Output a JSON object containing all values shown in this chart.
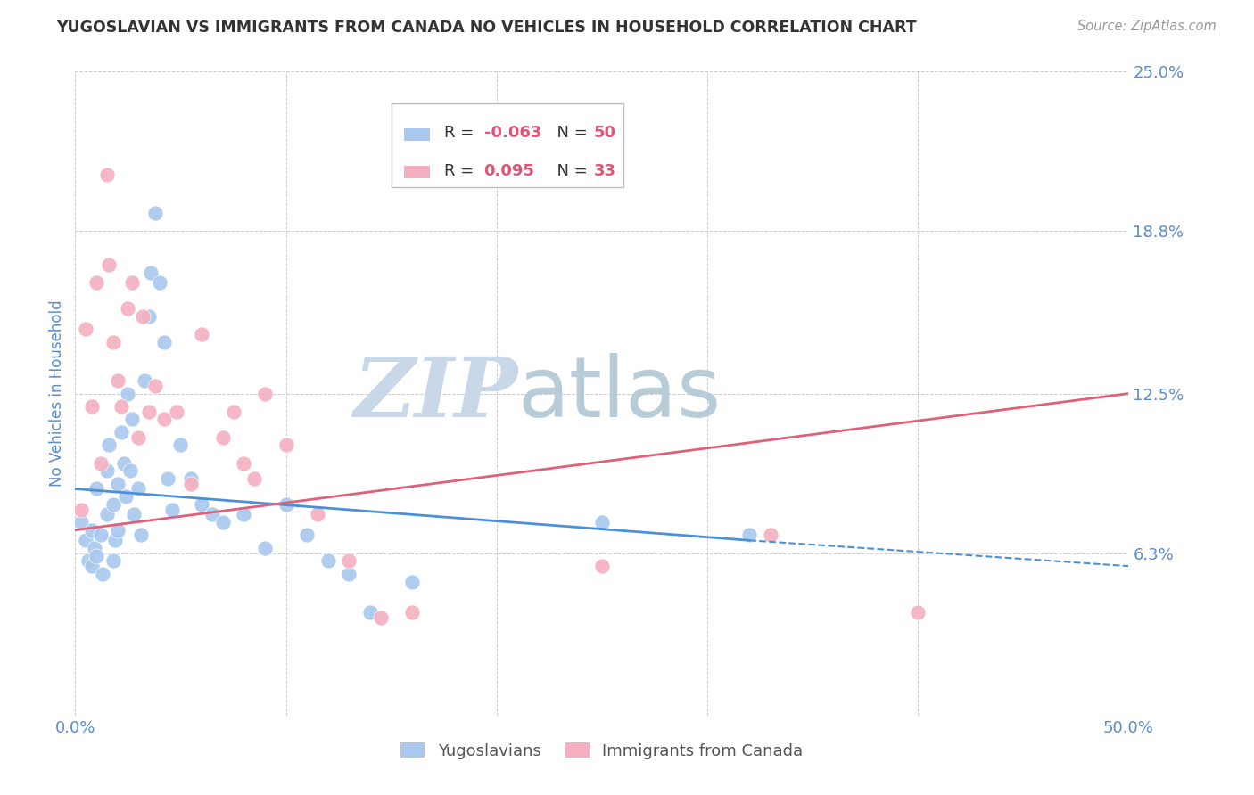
{
  "title": "YUGOSLAVIAN VS IMMIGRANTS FROM CANADA NO VEHICLES IN HOUSEHOLD CORRELATION CHART",
  "source": "Source: ZipAtlas.com",
  "ylabel": "No Vehicles in Household",
  "xlim": [
    0.0,
    0.5
  ],
  "ylim": [
    0.0,
    0.25
  ],
  "yticks": [
    0.0,
    0.063,
    0.125,
    0.188,
    0.25
  ],
  "ytick_labels": [
    "",
    "6.3%",
    "12.5%",
    "18.8%",
    "25.0%"
  ],
  "xtick_vals": [
    0.0,
    0.1,
    0.2,
    0.3,
    0.4,
    0.5
  ],
  "xtick_labels": [
    "0.0%",
    "",
    "",
    "",
    "",
    "50.0%"
  ],
  "watermark_zip": "ZIP",
  "watermark_atlas": "atlas",
  "series": [
    {
      "label": "Yugoslavians",
      "R": -0.063,
      "N": 50,
      "color": "#a8c8ee",
      "line_color": "#4a90d9",
      "line_solid_end": 0.32,
      "x": [
        0.003,
        0.005,
        0.006,
        0.008,
        0.008,
        0.009,
        0.01,
        0.01,
        0.012,
        0.013,
        0.015,
        0.015,
        0.016,
        0.018,
        0.018,
        0.019,
        0.02,
        0.02,
        0.022,
        0.023,
        0.024,
        0.025,
        0.026,
        0.027,
        0.028,
        0.03,
        0.031,
        0.033,
        0.035,
        0.036,
        0.038,
        0.04,
        0.042,
        0.044,
        0.046,
        0.05,
        0.055,
        0.06,
        0.065,
        0.07,
        0.08,
        0.09,
        0.1,
        0.11,
        0.12,
        0.13,
        0.14,
        0.16,
        0.25,
        0.32
      ],
      "y": [
        0.075,
        0.068,
        0.06,
        0.072,
        0.058,
        0.065,
        0.088,
        0.062,
        0.07,
        0.055,
        0.095,
        0.078,
        0.105,
        0.082,
        0.06,
        0.068,
        0.09,
        0.072,
        0.11,
        0.098,
        0.085,
        0.125,
        0.095,
        0.115,
        0.078,
        0.088,
        0.07,
        0.13,
        0.155,
        0.172,
        0.195,
        0.168,
        0.145,
        0.092,
        0.08,
        0.105,
        0.092,
        0.082,
        0.078,
        0.075,
        0.078,
        0.065,
        0.082,
        0.07,
        0.06,
        0.055,
        0.04,
        0.052,
        0.075,
        0.07
      ]
    },
    {
      "label": "Immigrants from Canada",
      "R": 0.095,
      "N": 33,
      "color": "#f4b0c0",
      "line_color": "#e0607a",
      "x": [
        0.003,
        0.005,
        0.008,
        0.01,
        0.012,
        0.015,
        0.016,
        0.018,
        0.02,
        0.022,
        0.025,
        0.027,
        0.03,
        0.032,
        0.035,
        0.038,
        0.042,
        0.048,
        0.055,
        0.06,
        0.07,
        0.075,
        0.08,
        0.085,
        0.09,
        0.1,
        0.115,
        0.13,
        0.145,
        0.16,
        0.25,
        0.33,
        0.4
      ],
      "y": [
        0.08,
        0.15,
        0.12,
        0.168,
        0.098,
        0.21,
        0.175,
        0.145,
        0.13,
        0.12,
        0.158,
        0.168,
        0.108,
        0.155,
        0.118,
        0.128,
        0.115,
        0.118,
        0.09,
        0.148,
        0.108,
        0.118,
        0.098,
        0.092,
        0.125,
        0.105,
        0.078,
        0.06,
        0.038,
        0.04,
        0.058,
        0.07,
        0.04
      ]
    }
  ],
  "title_color": "#333333",
  "source_color": "#999999",
  "ylabel_color": "#5a8cc9",
  "tick_color": "#5a8cc9",
  "grid_color": "#cccccc",
  "watermark_zip_color": "#c8d8e8",
  "watermark_atlas_color": "#b8ccd8",
  "background_color": "#ffffff",
  "legend_R_color": "#e05575",
  "legend_N_color": "#e05575"
}
